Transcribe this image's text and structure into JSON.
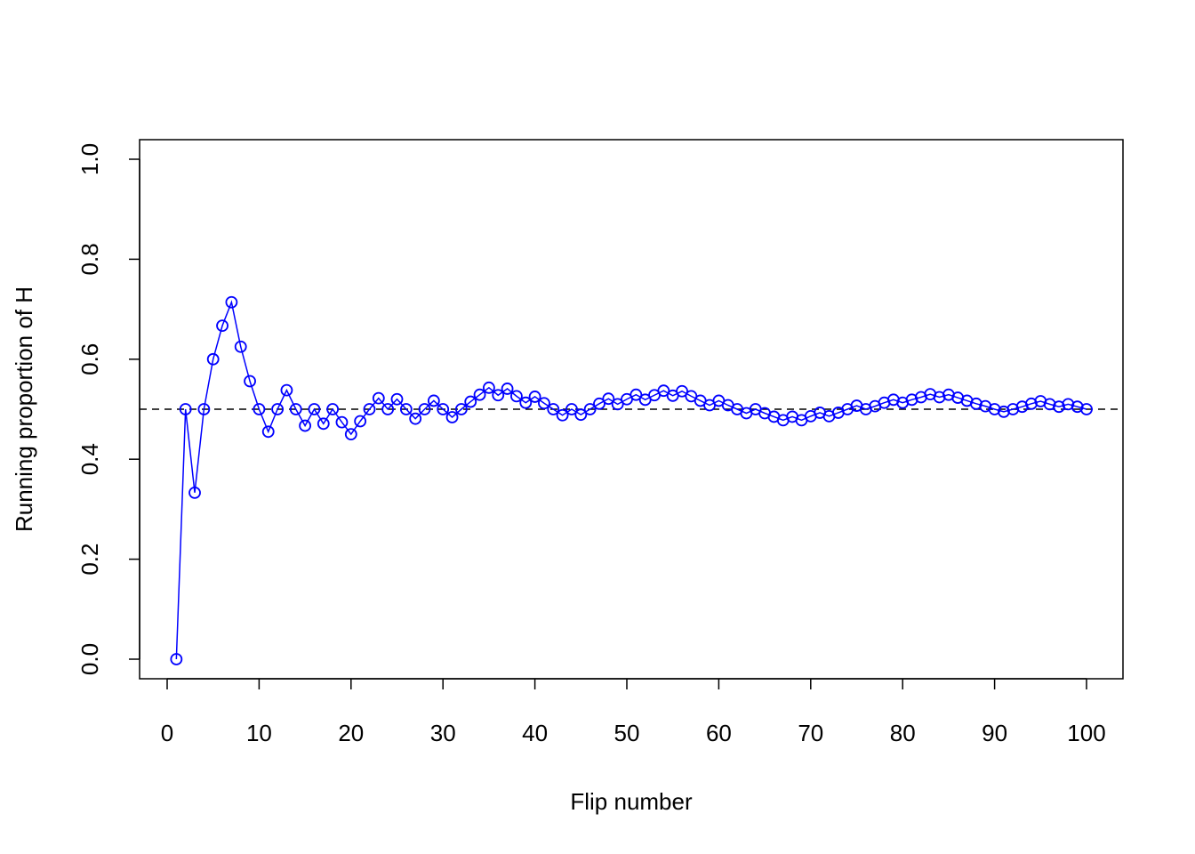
{
  "chart_data": {
    "type": "line",
    "xlabel": "Flip number",
    "ylabel": "Running proportion of H",
    "xlim": [
      0,
      100
    ],
    "ylim": [
      0,
      1
    ],
    "x_ticks": [
      0,
      10,
      20,
      30,
      40,
      50,
      60,
      70,
      80,
      90,
      100
    ],
    "y_ticks": [
      0.0,
      0.2,
      0.4,
      0.6,
      0.8,
      1.0
    ],
    "x_tick_labels": [
      "0",
      "10",
      "20",
      "30",
      "40",
      "50",
      "60",
      "70",
      "80",
      "90",
      "100"
    ],
    "y_tick_labels": [
      "0.0",
      "0.2",
      "0.4",
      "0.6",
      "0.8",
      "1.0"
    ],
    "reference_line": {
      "y": 0.5,
      "style": "dashed",
      "color": "#000000"
    },
    "series_color": "#0000ff",
    "marker": "open-circle",
    "grid": false,
    "series": [
      {
        "x": [
          1,
          2,
          3,
          4,
          5,
          6,
          7,
          8,
          9,
          10,
          11,
          12,
          13,
          14,
          15,
          16,
          17,
          18,
          19,
          20,
          21,
          22,
          23,
          24,
          25,
          26,
          27,
          28,
          29,
          30,
          31,
          32,
          33,
          34,
          35,
          36,
          37,
          38,
          39,
          40,
          41,
          42,
          43,
          44,
          45,
          46,
          47,
          48,
          49,
          50,
          51,
          52,
          53,
          54,
          55,
          56,
          57,
          58,
          59,
          60,
          61,
          62,
          63,
          64,
          65,
          66,
          67,
          68,
          69,
          70,
          71,
          72,
          73,
          74,
          75,
          76,
          77,
          78,
          79,
          80,
          81,
          82,
          83,
          84,
          85,
          86,
          87,
          88,
          89,
          90,
          91,
          92,
          93,
          94,
          95,
          96,
          97,
          98,
          99,
          100
        ],
        "values": [
          0.0,
          0.5,
          0.333,
          0.5,
          0.6,
          0.667,
          0.714,
          0.625,
          0.556,
          0.5,
          0.455,
          0.5,
          0.538,
          0.5,
          0.467,
          0.5,
          0.471,
          0.5,
          0.474,
          0.45,
          0.476,
          0.5,
          0.522,
          0.5,
          0.52,
          0.5,
          0.481,
          0.5,
          0.517,
          0.5,
          0.484,
          0.5,
          0.515,
          0.529,
          0.543,
          0.528,
          0.541,
          0.526,
          0.513,
          0.525,
          0.512,
          0.5,
          0.488,
          0.5,
          0.489,
          0.5,
          0.511,
          0.521,
          0.51,
          0.52,
          0.529,
          0.519,
          0.528,
          0.537,
          0.527,
          0.536,
          0.526,
          0.517,
          0.508,
          0.517,
          0.508,
          0.5,
          0.492,
          0.5,
          0.492,
          0.485,
          0.478,
          0.485,
          0.478,
          0.486,
          0.493,
          0.486,
          0.493,
          0.5,
          0.507,
          0.5,
          0.506,
          0.513,
          0.519,
          0.513,
          0.519,
          0.524,
          0.53,
          0.524,
          0.529,
          0.523,
          0.517,
          0.511,
          0.506,
          0.5,
          0.495,
          0.5,
          0.505,
          0.511,
          0.516,
          0.51,
          0.505,
          0.51,
          0.505,
          0.5
        ]
      }
    ]
  }
}
